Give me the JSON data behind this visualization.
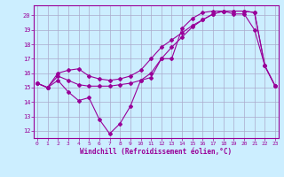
{
  "xlabel": "Windchill (Refroidissement éolien,°C)",
  "bg_color": "#cceeff",
  "grid_color": "#aaaacc",
  "line_color": "#990099",
  "x_ticks": [
    0,
    1,
    2,
    3,
    4,
    5,
    6,
    7,
    8,
    9,
    10,
    11,
    12,
    13,
    14,
    15,
    16,
    17,
    18,
    19,
    20,
    21,
    22,
    23
  ],
  "ylim": [
    11.5,
    20.7
  ],
  "xlim": [
    -0.3,
    23.3
  ],
  "yticks": [
    12,
    13,
    14,
    15,
    16,
    17,
    18,
    19,
    20
  ],
  "series1_x": [
    0,
    1,
    2,
    3,
    4,
    5,
    6,
    7,
    8,
    9,
    10,
    11,
    12,
    13,
    14,
    15,
    16,
    17,
    18,
    19,
    20,
    21,
    22,
    23
  ],
  "series1_y": [
    15.3,
    15.0,
    15.5,
    14.7,
    14.1,
    14.3,
    12.8,
    11.8,
    12.5,
    13.7,
    15.5,
    15.7,
    17.0,
    17.0,
    19.1,
    19.8,
    20.2,
    20.3,
    20.3,
    20.1,
    20.1,
    19.0,
    16.5,
    15.1
  ],
  "series2_x": [
    0,
    1,
    2,
    3,
    4,
    5,
    6,
    7,
    8,
    9,
    10,
    11,
    12,
    13,
    14,
    15,
    16,
    17,
    18,
    19,
    20,
    21,
    22,
    23
  ],
  "series2_y": [
    15.3,
    15.0,
    15.8,
    15.5,
    15.2,
    15.1,
    15.1,
    15.1,
    15.2,
    15.3,
    15.5,
    16.0,
    17.0,
    17.8,
    18.5,
    19.2,
    19.7,
    20.1,
    20.3,
    20.3,
    20.3,
    20.2,
    16.5,
    15.1
  ],
  "series3_x": [
    0,
    1,
    2,
    3,
    4,
    5,
    6,
    7,
    8,
    9,
    10,
    11,
    12,
    13,
    14,
    15,
    16,
    17,
    18,
    19,
    20,
    21,
    22,
    23
  ],
  "series3_y": [
    15.3,
    15.0,
    16.0,
    16.2,
    16.3,
    15.8,
    15.6,
    15.5,
    15.6,
    15.8,
    16.2,
    17.0,
    17.8,
    18.3,
    18.8,
    19.3,
    19.7,
    20.1,
    20.3,
    20.3,
    20.3,
    20.2,
    16.5,
    15.1
  ]
}
